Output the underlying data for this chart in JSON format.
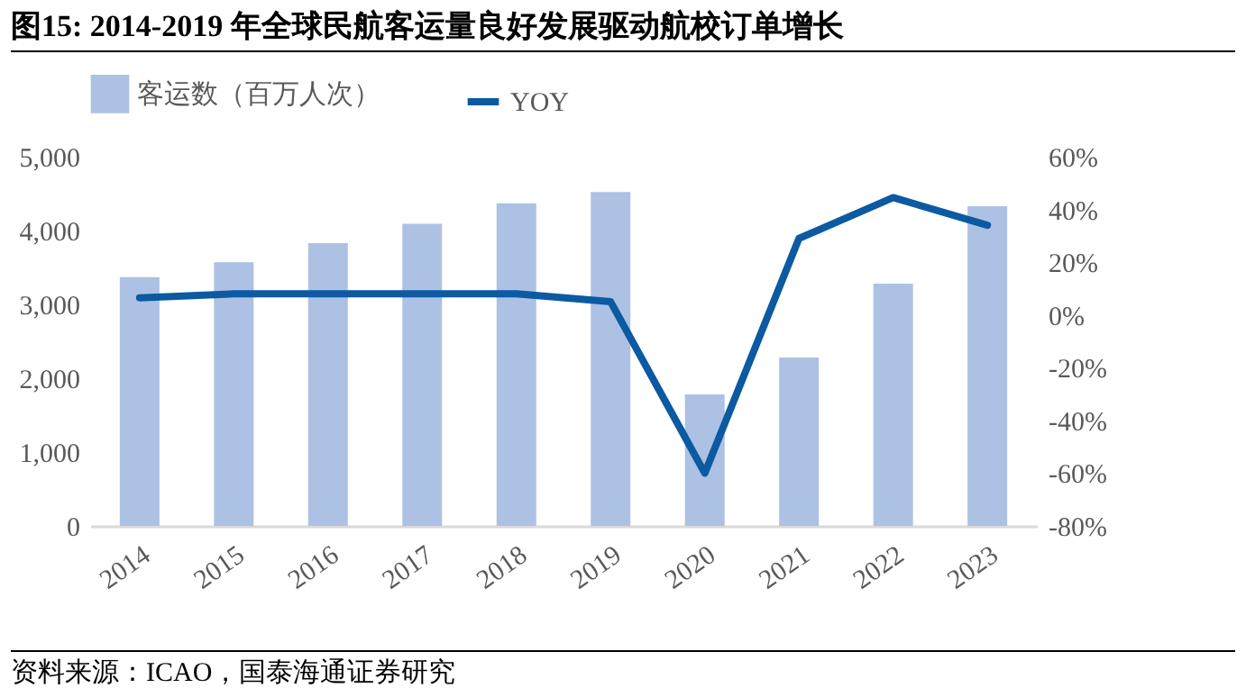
{
  "chart_data": {
    "type": "bar",
    "title": "图15:  2014-2019 年全球民航客运量良好发展驱动航校订单增长",
    "categories": [
      "2014",
      "2015",
      "2016",
      "2017",
      "2018",
      "2019",
      "2020",
      "2021",
      "2022",
      "2023"
    ],
    "series": [
      {
        "name": "客运数（百万人次）",
        "color": "#adc1e4",
        "values": [
          3370,
          3570,
          3830,
          4090,
          4370,
          4520,
          1780,
          2280,
          3280,
          4330
        ]
      },
      {
        "name": "YOY",
        "type": "line",
        "axis": "y2",
        "color": "#0b5aa2",
        "values": [
          6.5,
          8,
          8,
          8,
          8,
          5,
          -60,
          29,
          44.5,
          34
        ]
      }
    ],
    "ylim": [
      0,
      5000
    ],
    "yticks": [
      0,
      {
        "value": 1000,
        "label": "1,000"
      },
      {
        "value": 2000,
        "label": "2,000"
      },
      {
        "value": 3000,
        "label": "3,000"
      },
      {
        "value": 4000,
        "label": "4,000"
      },
      {
        "value": 5000,
        "label": "5,000"
      }
    ],
    "y2lim": [
      -80,
      60
    ],
    "y2ticks": [
      {
        "value": -80,
        "label": "-80%"
      },
      {
        "value": -60,
        "label": "-60%"
      },
      {
        "value": -40,
        "label": "-40%"
      },
      {
        "value": -20,
        "label": "-20%"
      },
      {
        "value": 0,
        "label": "0%"
      },
      {
        "value": 20,
        "label": "20%"
      },
      {
        "value": 40,
        "label": "40%"
      },
      {
        "value": 60,
        "label": "60%"
      }
    ],
    "grid": false,
    "legend": "top",
    "annotations": [
      "资料来源：ICAO，国泰海通证券研究"
    ]
  }
}
